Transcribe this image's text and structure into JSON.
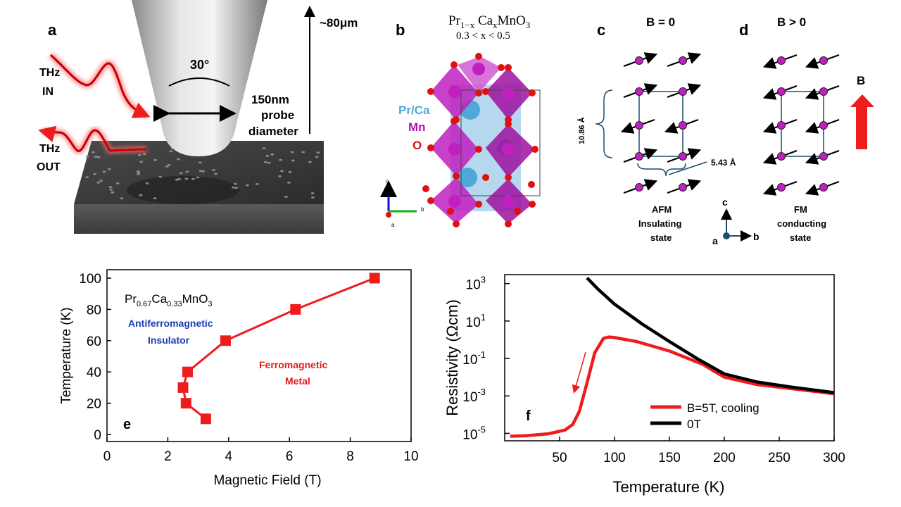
{
  "panel_labels": {
    "a": "a",
    "b": "b",
    "c": "c",
    "d": "d",
    "e": "e",
    "f": "f"
  },
  "panel_a": {
    "thz_in_1": "THz",
    "thz_in_2": "IN",
    "thz_out_1": "THz",
    "thz_out_2": "OUT",
    "angle": "30°",
    "height": "~80μm",
    "probe_1": "150nm",
    "probe_2": "probe",
    "probe_3": "diameter"
  },
  "panel_b": {
    "formula": "Pr1−x CaxMnO3",
    "doping": "0.3 < x < 0.5",
    "legend": [
      {
        "label": "Pr/Ca",
        "color": "#4fa8d8"
      },
      {
        "label": "Mn",
        "color": "#b014b0"
      },
      {
        "label": "O",
        "color": "#e01010"
      }
    ],
    "axes": {
      "c": "c",
      "b": "b",
      "a": "a"
    }
  },
  "panel_c": {
    "title": "B = 0",
    "spacing_c": "10.86 Å",
    "spacing_b": "5.43 Å",
    "caption_1": "AFM",
    "caption_2": "Insulating",
    "caption_3": "state",
    "axes": {
      "c": "c",
      "a": "a",
      "b": "b"
    }
  },
  "panel_d": {
    "title": "B > 0",
    "field_label": "B",
    "caption_1": "FM",
    "caption_2": "conducting",
    "caption_3": "state"
  },
  "colors": {
    "red": "#ee1c1c",
    "black": "#000000",
    "bracket": "#1c4f6e",
    "blue_text": "#1a3bb8",
    "red_text": "#e01c1c"
  },
  "chart_data": [
    {
      "type": "line",
      "panel": "e",
      "xlabel": "Magnetic Field (T)",
      "ylabel": "Temperature (K)",
      "xlim": [
        0,
        10
      ],
      "ylim": [
        0,
        100
      ],
      "xticks": [
        0,
        2,
        4,
        6,
        8,
        10
      ],
      "yticks": [
        0,
        20,
        40,
        60,
        80,
        100
      ],
      "inset_formula": "Pr0.67Ca0.33MnO3",
      "region_labels": {
        "afm_1": "Antiferromagnetic",
        "afm_2": "Insulator",
        "fm_1": "Ferromagnetic",
        "fm_2": "Metal"
      },
      "series": [
        {
          "values": [
            [
              3.25,
              10
            ],
            [
              2.6,
              20
            ],
            [
              2.5,
              30
            ],
            [
              2.65,
              40
            ],
            [
              3.9,
              60
            ],
            [
              6.2,
              80
            ],
            [
              8.8,
              100
            ]
          ]
        }
      ]
    },
    {
      "type": "line",
      "panel": "f",
      "xlabel": "Temperature (K)",
      "ylabel": "Resistivity (Ωcm)",
      "xlim": [
        0,
        300
      ],
      "ylim": [
        4e-06,
        3000
      ],
      "xticks": [
        50,
        100,
        150,
        200,
        250,
        300
      ],
      "ytick_exponents": [
        -5,
        -3,
        -1,
        1,
        3
      ],
      "yscale": "log",
      "legend": "bottom-right",
      "series": [
        {
          "name": "B=5T, cooling",
          "color": "#ee1c1c",
          "x": [
            5,
            20,
            40,
            55,
            62,
            68,
            75,
            82,
            90,
            95,
            100,
            120,
            150,
            180,
            200,
            230,
            260,
            300
          ],
          "y": [
            7e-06,
            7.5e-06,
            9.5e-06,
            1.5e-05,
            3e-05,
            0.00015,
            0.005,
            0.2,
            1.2,
            1.4,
            1.3,
            0.8,
            0.25,
            0.05,
            0.01,
            0.004,
            0.0025,
            0.0013
          ]
        },
        {
          "name": "0T",
          "color": "#000000",
          "x": [
            75,
            85,
            100,
            125,
            150,
            175,
            200,
            230,
            260,
            300
          ],
          "y": [
            2000,
            500,
            80,
            7,
            0.8,
            0.1,
            0.015,
            0.0055,
            0.003,
            0.0015
          ]
        }
      ]
    }
  ]
}
